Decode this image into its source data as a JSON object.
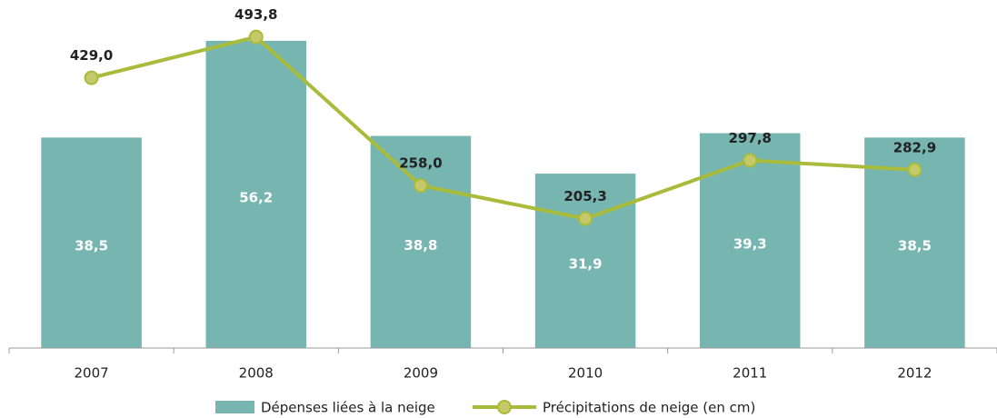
{
  "chart_data": {
    "type": "bar",
    "categories": [
      "2007",
      "2008",
      "2009",
      "2010",
      "2011",
      "2012"
    ],
    "series": [
      {
        "name": "Dépenses liées à la neige",
        "type": "bar",
        "color": "#76b5b0",
        "values": [
          38.5,
          56.2,
          38.8,
          31.9,
          39.3,
          38.5
        ],
        "value_labels": [
          "38,5",
          "56,2",
          "38,8",
          "31,9",
          "39,3",
          "38,5"
        ]
      },
      {
        "name": "Précipitations de neige (en cm)",
        "type": "line",
        "axis": "y2",
        "color": "#a9bb3b",
        "values": [
          429.0,
          493.8,
          258.0,
          205.3,
          297.8,
          282.9
        ],
        "value_labels": [
          "429,0",
          "493,8",
          "258,0",
          "205,3",
          "297,8",
          "282,9"
        ]
      }
    ],
    "ylim": [
      0,
      62
    ],
    "y2lim": [
      0,
      538
    ]
  }
}
